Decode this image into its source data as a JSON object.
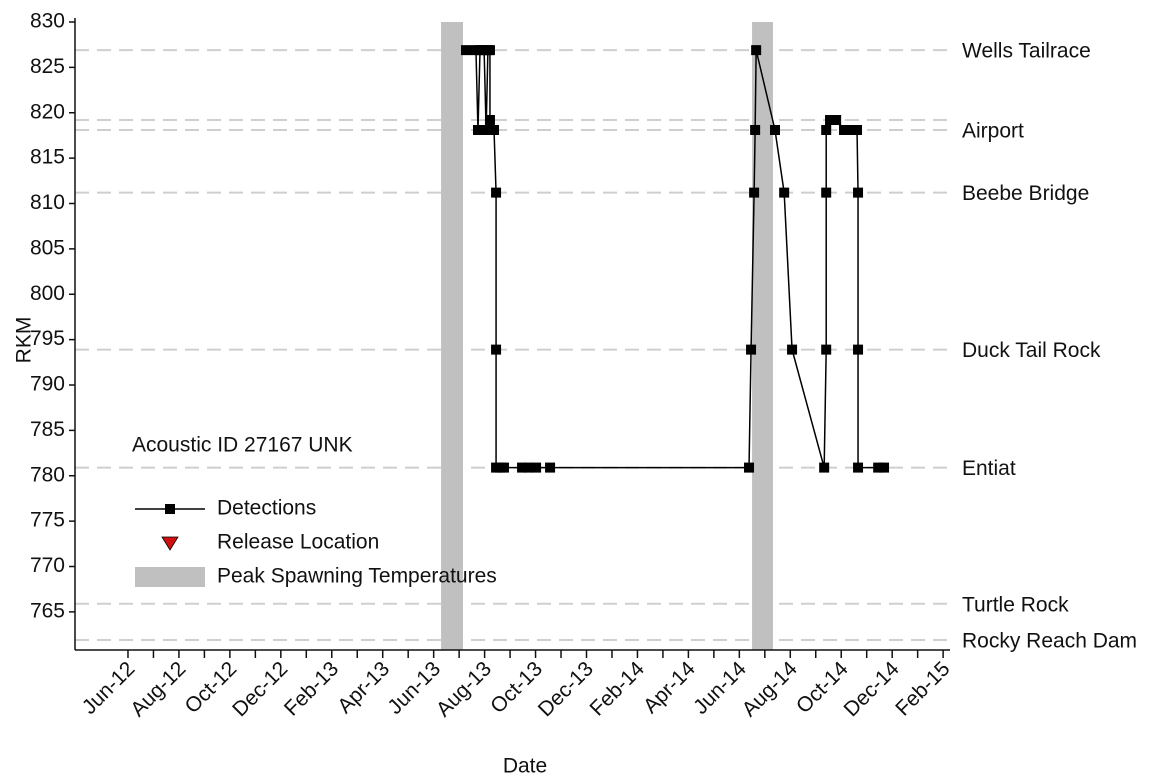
{
  "chart_data": {
    "type": "line",
    "xlabel": "Date",
    "ylabel": "RKM",
    "annotation": "Acoustic ID 27167  UNK",
    "xlim": [
      -2.08,
      32.27
    ],
    "xticks": [
      {
        "value": 0,
        "label": "Jun-12"
      },
      {
        "value": 2,
        "label": "Aug-12"
      },
      {
        "value": 4,
        "label": "Oct-12"
      },
      {
        "value": 6,
        "label": "Dec-12"
      },
      {
        "value": 8,
        "label": "Feb-13"
      },
      {
        "value": 10,
        "label": "Apr-13"
      },
      {
        "value": 12,
        "label": "Jun-13"
      },
      {
        "value": 14,
        "label": "Aug-13"
      },
      {
        "value": 16,
        "label": "Oct-13"
      },
      {
        "value": 18,
        "label": "Dec-13"
      },
      {
        "value": 20,
        "label": "Feb-14"
      },
      {
        "value": 22,
        "label": "Apr-14"
      },
      {
        "value": 24,
        "label": "Jun-14"
      },
      {
        "value": 26,
        "label": "Aug-14"
      },
      {
        "value": 28,
        "label": "Oct-14"
      },
      {
        "value": 30,
        "label": "Dec-14"
      },
      {
        "value": 32,
        "label": "Feb-15"
      }
    ],
    "ylim": [
      760.8,
      830
    ],
    "yticks": [
      765,
      770,
      775,
      780,
      785,
      790,
      795,
      800,
      805,
      810,
      815,
      820,
      825,
      830
    ],
    "reference_lines": [
      {
        "value": 826.9,
        "label": "Wells Tailrace"
      },
      {
        "value": 819.2
      },
      {
        "value": 818.1,
        "label": "Airport"
      },
      {
        "value": 811.2,
        "label": "Beebe Bridge"
      },
      {
        "value": 793.9,
        "label": "Duck Tail Rock"
      },
      {
        "value": 780.9,
        "label": "Entiat"
      },
      {
        "value": 765.9,
        "label": "Turtle Rock"
      },
      {
        "value": 761.9,
        "label": "Rocky Reach Dam"
      }
    ],
    "bands": [
      {
        "x": [
          12.29,
          13.15
        ],
        "color": "#c0c0c0"
      },
      {
        "x": [
          24.5,
          25.32
        ],
        "color": "#c0c0c0"
      }
    ],
    "legend": [
      {
        "label": "Detections",
        "color": "#000000",
        "marker": "square"
      },
      {
        "label": "Release Location",
        "color": "#d01010",
        "marker": "triangle"
      },
      {
        "label": "Peak Spawning Temperatures",
        "color": "#c0c0c0",
        "marker": "band"
      }
    ],
    "series": [
      {
        "name": "Detections",
        "color": "#000000",
        "x": [
          13.27,
          13.66,
          13.74,
          13.82,
          13.98,
          14.06,
          14.13,
          14.21,
          14.21,
          14.37,
          14.45,
          14.45,
          14.45,
          14.61,
          14.76,
          15.47,
          15.71,
          16.02,
          16.57,
          24.38,
          24.46,
          24.58,
          24.62,
          24.66,
          25.4,
          25.76,
          26.07,
          27.33,
          27.41,
          27.41,
          27.41,
          27.56,
          27.8,
          28.11,
          28.35,
          28.62,
          28.66,
          28.66,
          28.66,
          29.45,
          29.68
        ],
        "values": [
          826.9,
          826.9,
          818.1,
          826.9,
          826.9,
          818.1,
          826.9,
          826.9,
          819.2,
          818.1,
          811.2,
          793.9,
          780.9,
          780.9,
          780.9,
          780.9,
          780.9,
          780.9,
          780.9,
          780.9,
          793.9,
          811.2,
          818.1,
          826.9,
          818.1,
          811.2,
          793.9,
          780.9,
          793.9,
          811.2,
          818.1,
          819.2,
          819.2,
          818.1,
          818.1,
          818.1,
          811.2,
          793.9,
          780.9,
          780.9,
          780.9
        ]
      }
    ]
  }
}
